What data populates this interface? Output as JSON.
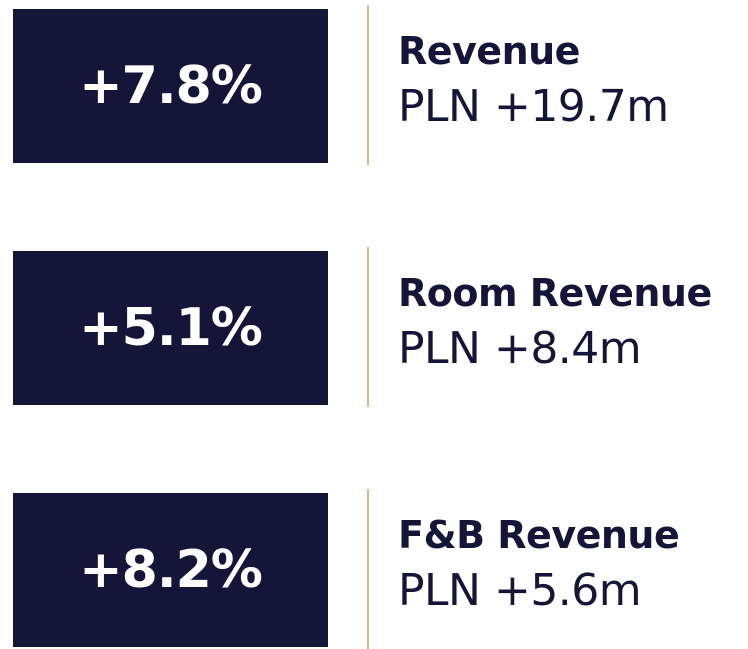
{
  "items": [
    {
      "change": "+7.8%",
      "label": "Revenue",
      "amount": "PLN +19.7m"
    },
    {
      "change": "+5.1%",
      "label": "Room Revenue",
      "amount": "PLN +8.4m"
    },
    {
      "change": "+8.2%",
      "label": "F&B Revenue",
      "amount": "PLN +5.6m"
    }
  ]
}
